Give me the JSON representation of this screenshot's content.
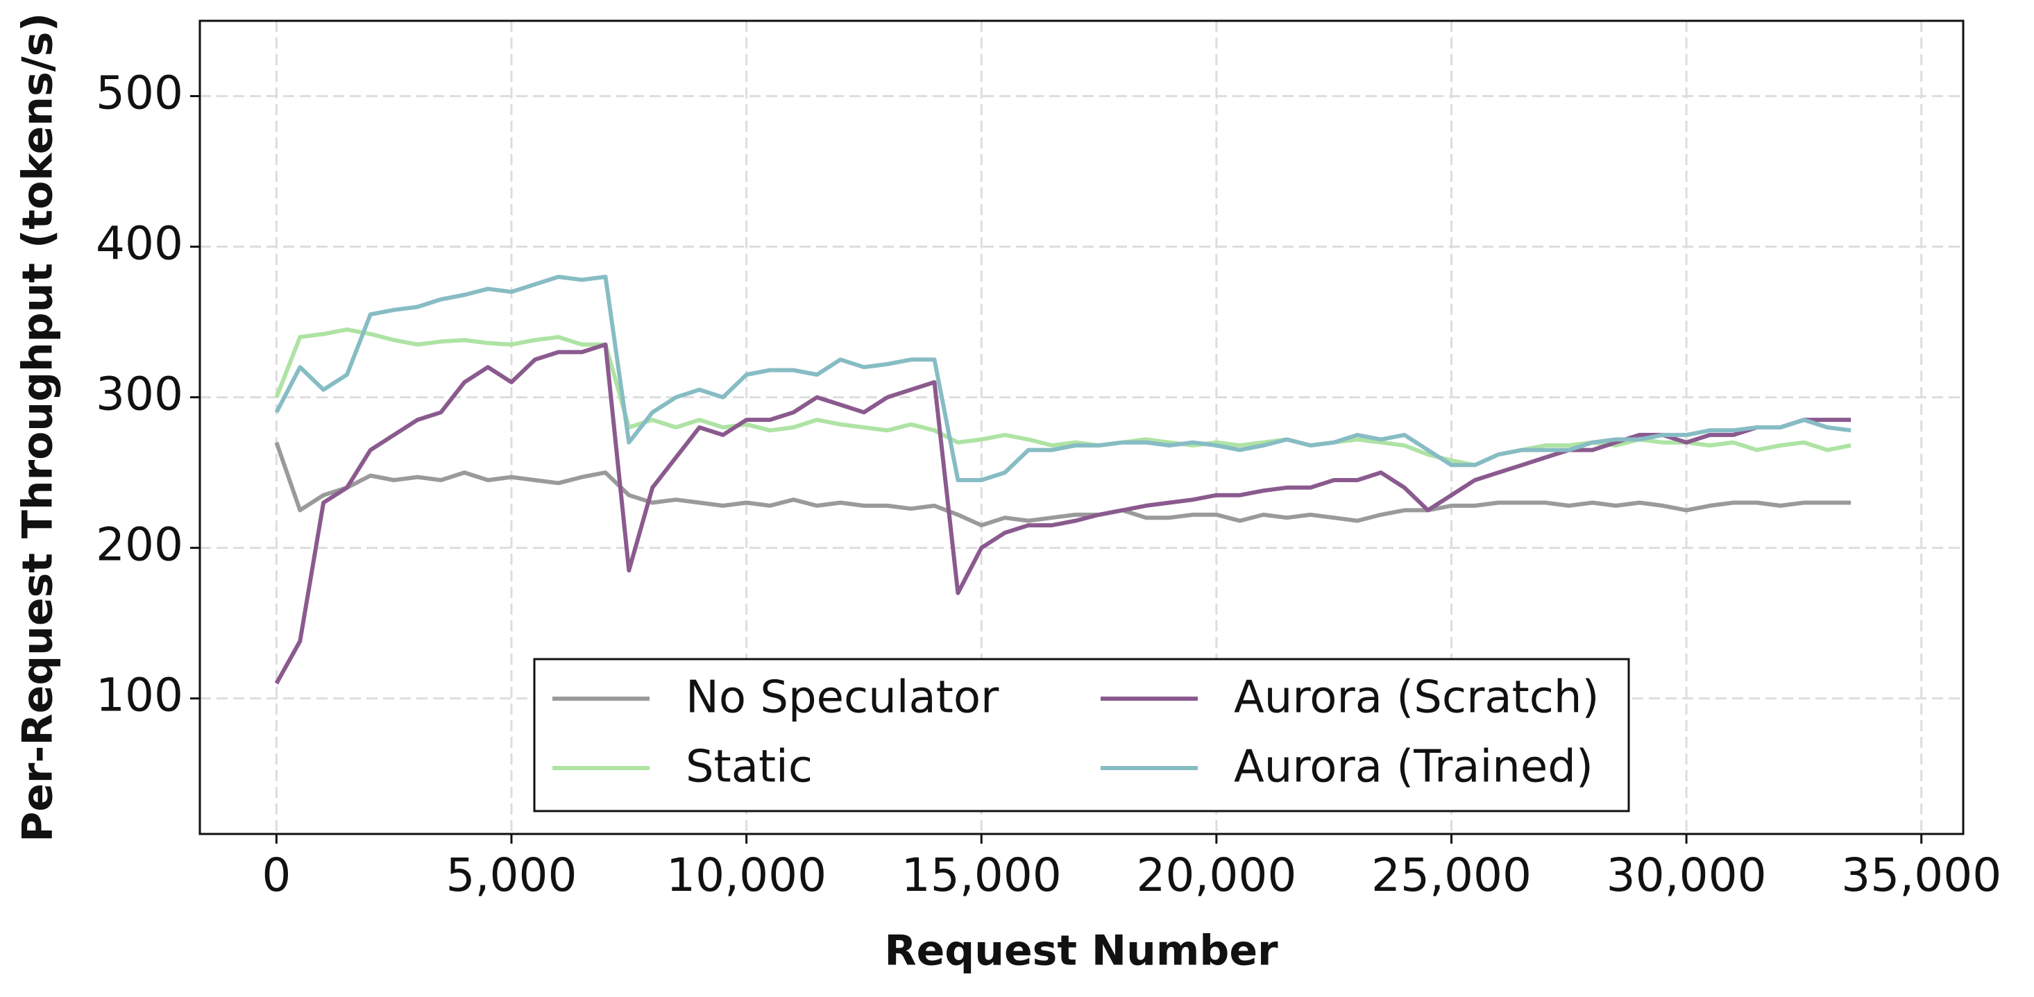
{
  "chart_data": {
    "type": "line",
    "xlabel": "Request Number",
    "ylabel": "Per-Request Throughput (tokens/s)",
    "x": [
      0,
      500,
      1000,
      1500,
      2000,
      2500,
      3000,
      3500,
      4000,
      4500,
      5000,
      5500,
      6000,
      6500,
      7000,
      7500,
      8000,
      8500,
      9000,
      9500,
      10000,
      10500,
      11000,
      11500,
      12000,
      12500,
      13000,
      13500,
      14000,
      14500,
      15000,
      15500,
      16000,
      16500,
      17000,
      17500,
      18000,
      18500,
      19000,
      19500,
      20000,
      20500,
      21000,
      21500,
      22000,
      22500,
      23000,
      23500,
      24000,
      24500,
      25000,
      25500,
      26000,
      26500,
      27000,
      27500,
      28000,
      28500,
      29000,
      29500,
      30000,
      30500,
      31000,
      31500,
      32000,
      32500,
      33000,
      33500
    ],
    "series": [
      {
        "name": "No Speculator",
        "color": "#9a9a9a",
        "values": [
          270,
          225,
          235,
          240,
          248,
          245,
          247,
          245,
          250,
          245,
          247,
          245,
          243,
          247,
          250,
          235,
          230,
          232,
          230,
          228,
          230,
          228,
          232,
          228,
          230,
          228,
          228,
          226,
          228,
          222,
          215,
          220,
          218,
          220,
          222,
          222,
          225,
          220,
          220,
          222,
          222,
          218,
          222,
          220,
          222,
          220,
          218,
          222,
          225,
          225,
          228,
          228,
          230,
          230,
          230,
          228,
          230,
          228,
          230,
          228,
          225,
          228,
          230,
          230,
          228,
          230,
          230,
          230
        ]
      },
      {
        "name": "Static",
        "color": "#aee3a4",
        "values": [
          300,
          340,
          342,
          345,
          342,
          338,
          335,
          337,
          338,
          336,
          335,
          338,
          340,
          335,
          335,
          280,
          285,
          280,
          285,
          280,
          282,
          278,
          280,
          285,
          282,
          280,
          278,
          282,
          278,
          270,
          272,
          275,
          272,
          268,
          270,
          268,
          270,
          272,
          270,
          268,
          270,
          268,
          270,
          272,
          268,
          270,
          272,
          270,
          268,
          262,
          258,
          255,
          262,
          265,
          268,
          268,
          270,
          268,
          272,
          270,
          270,
          268,
          270,
          265,
          268,
          270,
          265,
          268
        ]
      },
      {
        "name": "Aurora (Scratch)",
        "color": "#8a5a8e",
        "values": [
          110,
          138,
          230,
          240,
          265,
          275,
          285,
          290,
          310,
          320,
          310,
          325,
          330,
          330,
          335,
          185,
          240,
          260,
          280,
          275,
          285,
          285,
          290,
          300,
          295,
          290,
          300,
          305,
          310,
          170,
          200,
          210,
          215,
          215,
          218,
          222,
          225,
          228,
          230,
          232,
          235,
          235,
          238,
          240,
          240,
          245,
          245,
          250,
          240,
          225,
          235,
          245,
          250,
          255,
          260,
          265,
          265,
          270,
          275,
          275,
          270,
          275,
          275,
          280,
          280,
          285,
          285,
          285
        ]
      },
      {
        "name": "Aurora (Trained)",
        "color": "#87bcc4",
        "values": [
          290,
          320,
          305,
          315,
          355,
          358,
          360,
          365,
          368,
          372,
          370,
          375,
          380,
          378,
          380,
          270,
          290,
          300,
          305,
          300,
          315,
          318,
          318,
          315,
          325,
          320,
          322,
          325,
          325,
          245,
          245,
          250,
          265,
          265,
          268,
          268,
          270,
          270,
          268,
          270,
          268,
          265,
          268,
          272,
          268,
          270,
          275,
          272,
          275,
          265,
          255,
          255,
          262,
          265,
          265,
          265,
          270,
          272,
          272,
          275,
          275,
          278,
          278,
          280,
          280,
          285,
          280,
          278
        ]
      }
    ],
    "xlim": [
      -1630,
      35890
    ],
    "xticks": [
      0,
      {
        "value": 5000,
        "label": "5,000"
      },
      {
        "value": 10000,
        "label": "10,000"
      },
      {
        "value": 15000,
        "label": "15,000"
      },
      {
        "value": 20000,
        "label": "20,000"
      },
      {
        "value": 25000,
        "label": "25,000"
      },
      {
        "value": 30000,
        "label": "30,000"
      },
      {
        "value": 35000,
        "label": "35,000"
      }
    ],
    "ylim": [
      10,
      550
    ],
    "yticks": [
      100,
      200,
      300,
      400,
      500
    ],
    "grid": true,
    "legend": "lower center"
  }
}
